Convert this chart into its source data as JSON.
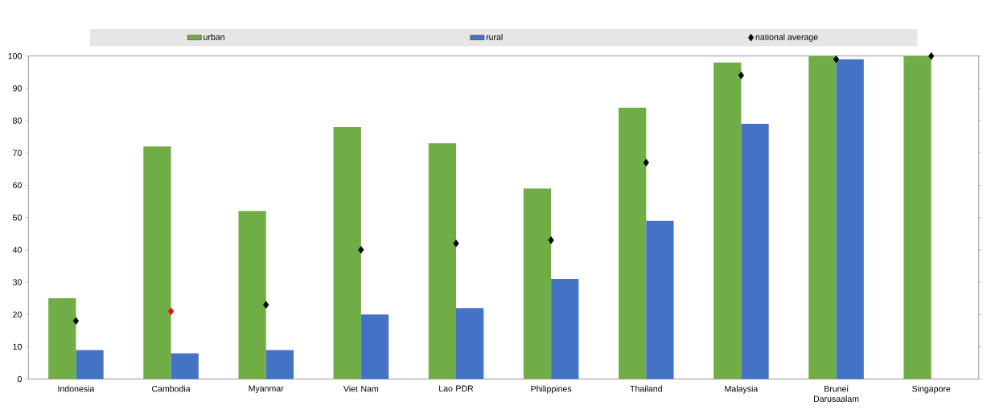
{
  "chart_data": {
    "type": "bar",
    "categories": [
      "Indonesia",
      "Cambodia",
      "Myanmar",
      "Viet Nam",
      "Lao PDR",
      "Philippines",
      "Thailand",
      "Malaysia",
      "Brunei Darusaalam",
      "Singapore"
    ],
    "series": [
      {
        "name": "urban",
        "color": "#70ad47",
        "values": [
          25,
          72,
          52,
          78,
          73,
          59,
          84,
          98,
          100,
          100
        ]
      },
      {
        "name": "rural",
        "color": "#4472c4",
        "values": [
          9,
          8,
          9,
          20,
          22,
          31,
          49,
          79,
          99,
          null
        ]
      },
      {
        "name": "national average",
        "type": "scatter",
        "marker": "diamond",
        "color": "#000000",
        "colors": [
          "#000000",
          "#ff0000",
          "#000000",
          "#000000",
          "#000000",
          "#000000",
          "#000000",
          "#000000",
          "#000000",
          "#000000"
        ],
        "values": [
          18,
          21,
          23,
          40,
          42,
          43,
          67,
          94,
          99,
          100
        ]
      }
    ],
    "ylim": [
      0,
      100
    ],
    "yticks": [
      0,
      10,
      20,
      30,
      40,
      50,
      60,
      70,
      80,
      90,
      100
    ],
    "legend": "top"
  }
}
